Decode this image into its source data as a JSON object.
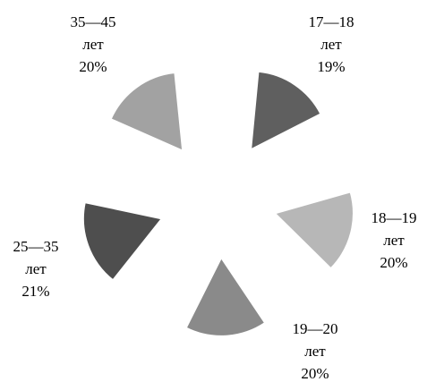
{
  "chart_data": {
    "type": "pie",
    "style": "exploded, inner radius removed (shown as separated wedges)",
    "categories": [
      "17—18 лет",
      "18—19 лет",
      "19—20 лет",
      "25—35 лет",
      "35—45 лет"
    ],
    "slices": [
      {
        "label_line1": "17—18",
        "label_line2": "лет",
        "value_text": "19%",
        "value": 19,
        "color": "#5f5f5f"
      },
      {
        "label_line1": "18—19",
        "label_line2": "лет",
        "value_text": "20%",
        "value": 20,
        "color": "#b7b7b7"
      },
      {
        "label_line1": "19—20",
        "label_line2": "лет",
        "value_text": "20%",
        "value": 20,
        "color": "#8a8a8a"
      },
      {
        "label_line1": "25—35",
        "label_line2": "лет",
        "value_text": "21%",
        "value": 21,
        "color": "#4e4e4e"
      },
      {
        "label_line1": "35—45",
        "label_line2": "лет",
        "value_text": "20%",
        "value": 20,
        "color": "#a2a2a2"
      }
    ],
    "legend": "none"
  }
}
